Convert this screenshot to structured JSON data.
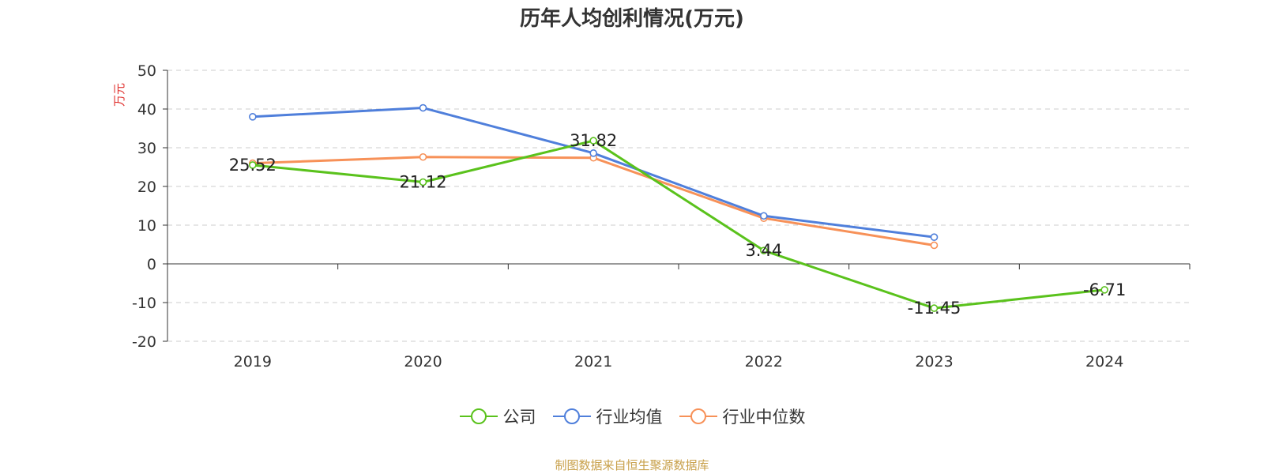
{
  "title": "历年人均创利情况(万元)",
  "source": "制图数据来自恒生聚源数据库",
  "chart_data": {
    "type": "line",
    "title": "历年人均创利情况(万元)",
    "ylabel": "万元",
    "x": [
      "2019",
      "2020",
      "2021",
      "2022",
      "2023",
      "2024"
    ],
    "ylim": [
      -20,
      50
    ],
    "yticks": [
      50,
      40,
      30,
      20,
      10,
      0,
      -10,
      -20
    ],
    "grid": true,
    "legend_position": "bottom",
    "series": [
      {
        "name": "公司",
        "color": "#5ac21c",
        "values": [
          25.52,
          21.12,
          31.82,
          3.44,
          -11.45,
          -6.71
        ],
        "labels": [
          "25.52",
          "21.12",
          "31.82",
          "3.44",
          "-11.45",
          "-6.71"
        ]
      },
      {
        "name": "行业均值",
        "color": "#4f7fdb",
        "values": [
          38.0,
          40.3,
          28.6,
          12.4,
          6.9,
          null
        ]
      },
      {
        "name": "行业中位数",
        "color": "#f79158",
        "values": [
          26.0,
          27.6,
          27.4,
          11.8,
          4.8,
          null
        ]
      }
    ]
  }
}
